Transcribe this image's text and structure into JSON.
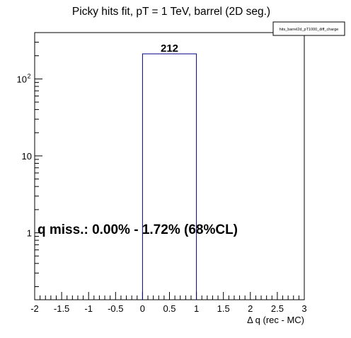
{
  "chart_data": {
    "type": "bar",
    "title": "Picky hits fit, pT = 1 TeV, barrel (2D seg.)",
    "xlabel": "Δ q (rec - MC)",
    "ylabel": "",
    "legend_label": "hits_barrel2d_pT1000_diff_charge",
    "legend_position": "top-right",
    "xlim": [
      -2,
      3
    ],
    "ylim": [
      0.135,
      400
    ],
    "y_scale": "log",
    "grid": false,
    "x_ticks": [
      -2,
      -1.5,
      -1,
      -0.5,
      0,
      0.5,
      1,
      1.5,
      2,
      2.5,
      3
    ],
    "x_tick_labels": [
      "-2",
      "-1.5",
      "-1",
      "-0.5",
      "0",
      "0.5",
      "1",
      "1.5",
      "2",
      "2.5",
      "3"
    ],
    "y_ticks": [
      {
        "value": 1,
        "label": "1"
      },
      {
        "value": 10,
        "label": "10"
      },
      {
        "value": 100,
        "label": "10",
        "exponent": "2"
      }
    ],
    "bins": [
      {
        "x_low": 0,
        "x_high": 1,
        "value": 212,
        "label": "212"
      }
    ],
    "annotation": "q miss.: 0.00% - 1.72% (68%CL)",
    "colors": {
      "histogram_line": "#000080",
      "axis": "#000000",
      "background": "#ffffff"
    }
  }
}
